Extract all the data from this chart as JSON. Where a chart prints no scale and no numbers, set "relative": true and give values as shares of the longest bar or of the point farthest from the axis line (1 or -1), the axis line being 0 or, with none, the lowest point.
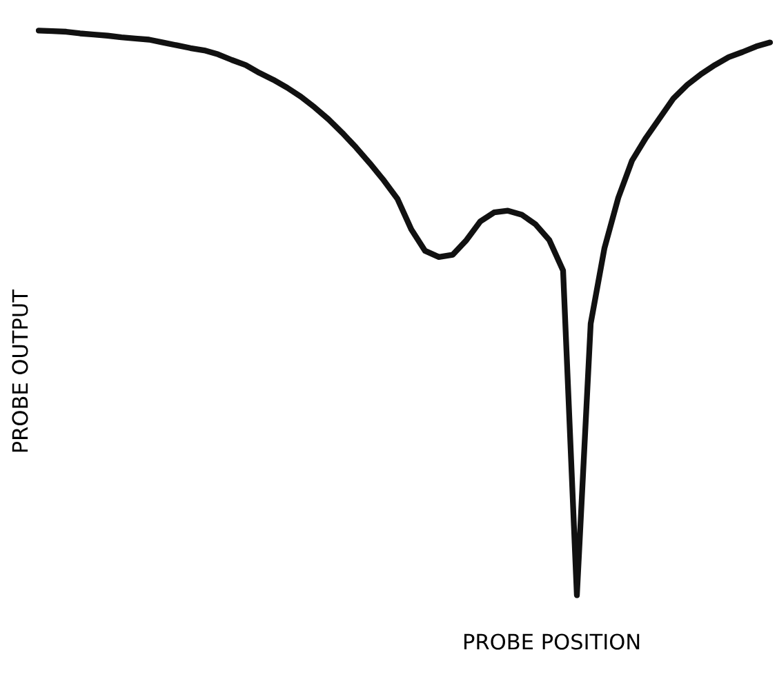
{
  "chart_data": {
    "type": "line",
    "relative": true,
    "xlabel": "PROBE POSITION",
    "ylabel": "PROBE OUTPUT",
    "marker": "none",
    "line_style": "solid",
    "categories": [
      null,
      null,
      null,
      null,
      null,
      null,
      null,
      null,
      null,
      null,
      null,
      null,
      null,
      null,
      null,
      null,
      null,
      null,
      null,
      null,
      null,
      null,
      null,
      null,
      null,
      null,
      null,
      null,
      null,
      null,
      null,
      null,
      null,
      null,
      null,
      null,
      null,
      null,
      null,
      null,
      null,
      null,
      null,
      null,
      null,
      null,
      null,
      null,
      null,
      null,
      null,
      null,
      null,
      null
    ],
    "series": [
      {
        "color": "#111111",
        "values": [
          1.0,
          0.999,
          0.998,
          0.995,
          0.993,
          0.991,
          0.988,
          0.986,
          0.984,
          0.979,
          0.974,
          0.969,
          0.965,
          0.958,
          0.948,
          0.939,
          0.925,
          0.913,
          0.899,
          0.883,
          0.864,
          0.843,
          0.819,
          0.793,
          0.765,
          0.735,
          0.702,
          0.648,
          0.61,
          0.599,
          0.603,
          0.629,
          0.662,
          0.678,
          0.681,
          0.674,
          0.657,
          0.629,
          0.575,
          0,
          0.481,
          0.615,
          0.704,
          0.77,
          0.81,
          0.845,
          0.88,
          0.904,
          0.923,
          0.939,
          0.953,
          0.962,
          0.972,
          0.979
        ]
      }
    ]
  }
}
